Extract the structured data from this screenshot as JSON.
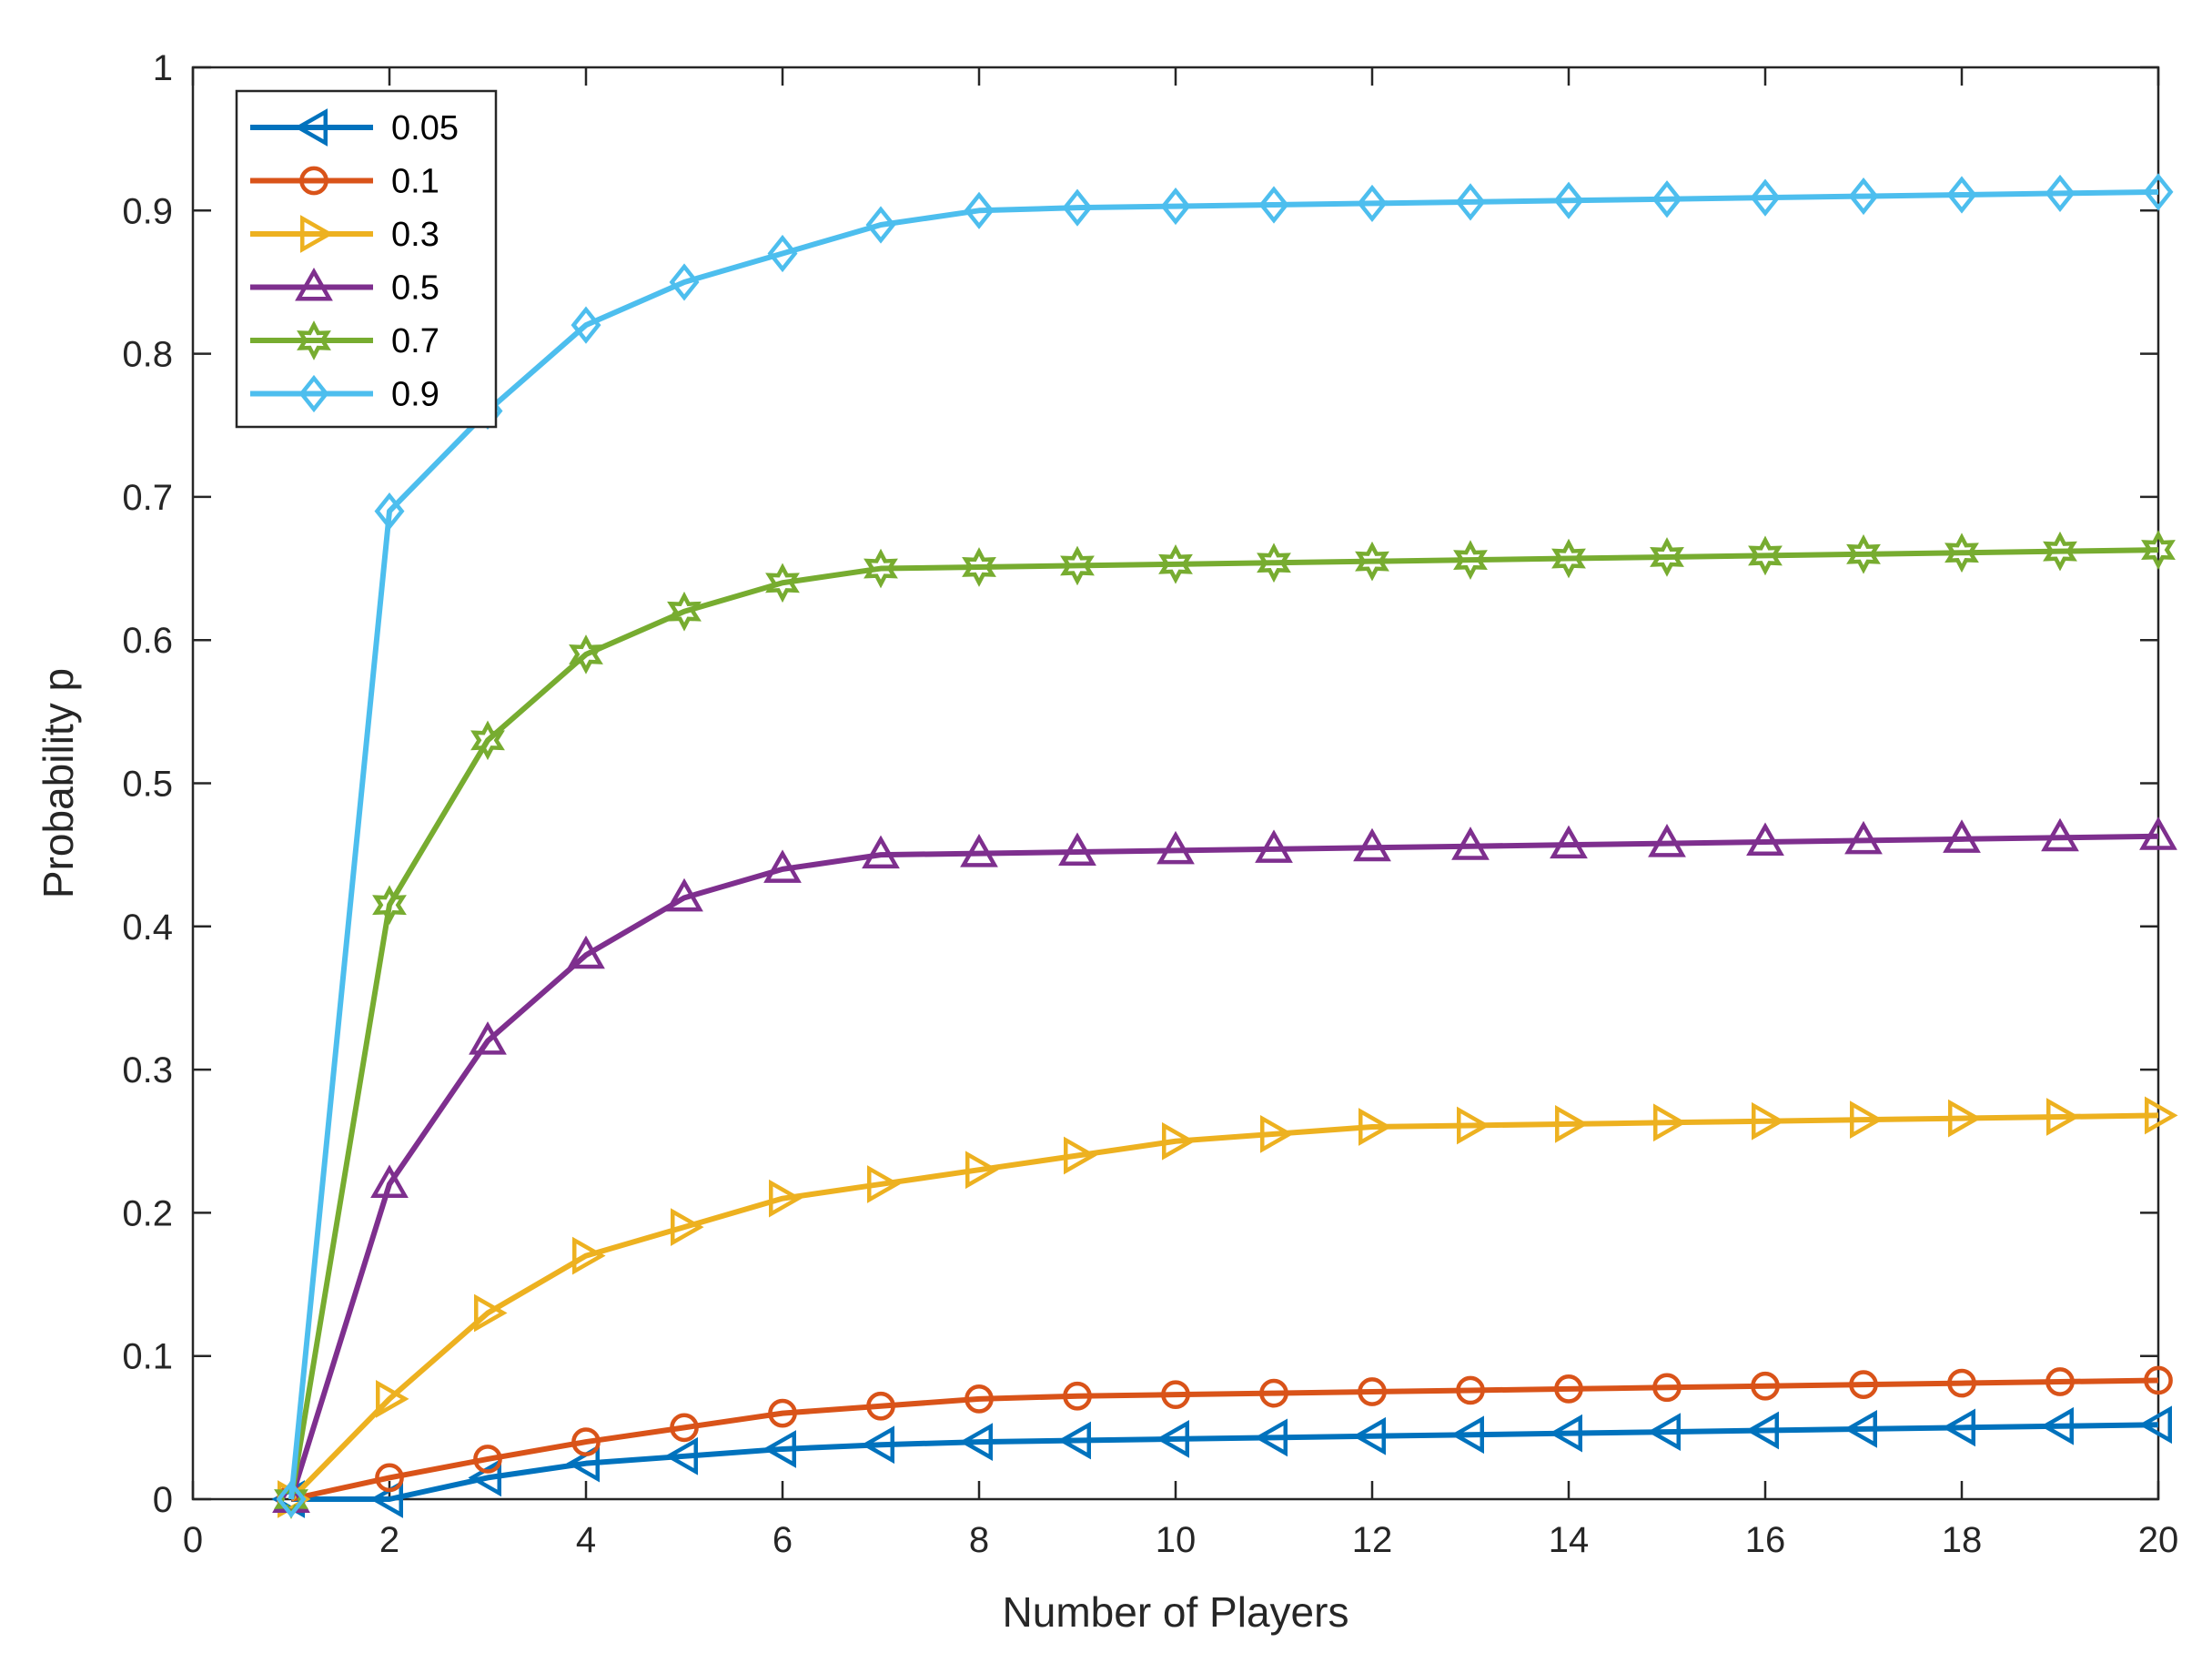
{
  "chart_data": {
    "type": "line",
    "xlabel": "Number of Players",
    "ylabel": "Probability p",
    "xlim": [
      0,
      20
    ],
    "ylim": [
      0,
      1
    ],
    "xticks": [
      0,
      2,
      4,
      6,
      8,
      10,
      12,
      14,
      16,
      18,
      20
    ],
    "yticks": [
      0,
      0.1,
      0.2,
      0.3,
      0.4,
      0.5,
      0.6,
      0.7,
      0.8,
      0.9,
      1
    ],
    "xtick_labels": [
      "0",
      "2",
      "4",
      "6",
      "8",
      "10",
      "12",
      "14",
      "16",
      "18",
      "20"
    ],
    "ytick_labels": [
      "0",
      "0.1",
      "0.2",
      "0.3",
      "0.4",
      "0.5",
      "0.6",
      "0.7",
      "0.8",
      "0.9",
      "1"
    ],
    "grid": false,
    "legend_position": "top-left",
    "x": [
      1,
      2,
      3,
      4,
      5,
      6,
      7,
      8,
      9,
      10,
      11,
      12,
      13,
      14,
      15,
      16,
      17,
      18,
      19,
      20
    ],
    "series": [
      {
        "name": "0.05",
        "color": "#0072BD",
        "marker": "triangle-left",
        "values": [
          0,
          0,
          0.015,
          0.025,
          0.03,
          0.035,
          0.038,
          0.04,
          0.041,
          0.042,
          0.043,
          0.044,
          0.045,
          0.046,
          0.047,
          0.048,
          0.049,
          0.05,
          0.051,
          0.052
        ]
      },
      {
        "name": "0.1",
        "color": "#D95319",
        "marker": "circle",
        "values": [
          0,
          0.015,
          0.028,
          0.04,
          0.05,
          0.06,
          0.065,
          0.07,
          0.072,
          0.073,
          0.074,
          0.075,
          0.076,
          0.077,
          0.078,
          0.079,
          0.08,
          0.081,
          0.082,
          0.083
        ]
      },
      {
        "name": "0.3",
        "color": "#EDB120",
        "marker": "triangle-right",
        "values": [
          0,
          0.07,
          0.13,
          0.17,
          0.19,
          0.21,
          0.22,
          0.23,
          0.24,
          0.25,
          0.255,
          0.26,
          0.261,
          0.262,
          0.263,
          0.264,
          0.265,
          0.266,
          0.267,
          0.268
        ]
      },
      {
        "name": "0.5",
        "color": "#7E2F8E",
        "marker": "triangle-up",
        "values": [
          0,
          0.22,
          0.32,
          0.38,
          0.42,
          0.44,
          0.45,
          0.451,
          0.452,
          0.453,
          0.454,
          0.455,
          0.456,
          0.457,
          0.458,
          0.459,
          0.46,
          0.461,
          0.462,
          0.463
        ]
      },
      {
        "name": "0.7",
        "color": "#77AC30",
        "marker": "hexagram",
        "values": [
          0,
          0.415,
          0.53,
          0.59,
          0.62,
          0.64,
          0.65,
          0.651,
          0.652,
          0.653,
          0.654,
          0.655,
          0.656,
          0.657,
          0.658,
          0.659,
          0.66,
          0.661,
          0.662,
          0.663
        ]
      },
      {
        "name": "0.9",
        "color": "#4DBEEE",
        "marker": "diamond",
        "values": [
          0,
          0.69,
          0.76,
          0.82,
          0.85,
          0.87,
          0.89,
          0.9,
          0.902,
          0.903,
          0.904,
          0.905,
          0.906,
          0.907,
          0.908,
          0.909,
          0.91,
          0.911,
          0.912,
          0.913
        ]
      }
    ]
  }
}
